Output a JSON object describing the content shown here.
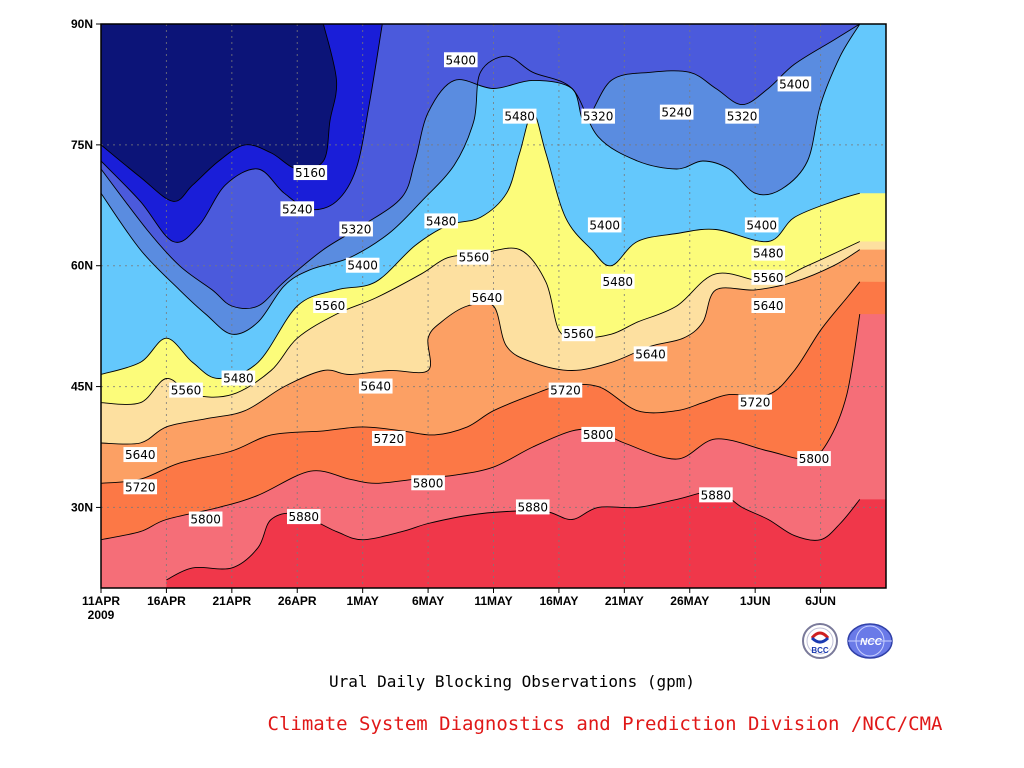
{
  "chart_data": {
    "type": "heatmap",
    "subtype": "filled-contour",
    "title": "Ural Daily Blocking Observations (gpm)",
    "x_tick_labels": [
      "11APR",
      "16APR",
      "21APR",
      "26APR",
      "1MAY",
      "6MAY",
      "11MAY",
      "16MAY",
      "21MAY",
      "26MAY",
      "1JUN",
      "6JUN"
    ],
    "x_year_label": "2009",
    "x_days": [
      0,
      5,
      10,
      15,
      20,
      25,
      30,
      35,
      40,
      45,
      50,
      55
    ],
    "xlim_days": [
      0,
      60
    ],
    "y_tick_labels": [
      "90N",
      "75N",
      "60N",
      "45N",
      "30N"
    ],
    "y_values": [
      90,
      75,
      60,
      45,
      30
    ],
    "ylim": [
      20,
      90
    ],
    "grid": true,
    "contour_levels": [
      5160,
      5240,
      5320,
      5400,
      5480,
      5560,
      5640,
      5720,
      5800,
      5880
    ],
    "fill_colors": [
      "#0c1478",
      "#1a1ed8",
      "#4b5adc",
      "#5a8ce0",
      "#64c8fc",
      "#fcfc7a",
      "#fde0a0",
      "#fca064",
      "#fc7846",
      "#f56e78",
      "#f0374a"
    ],
    "contour_lines": [
      {
        "level": 5160,
        "points": [
          [
            0,
            75
          ],
          [
            3,
            71
          ],
          [
            5.5,
            68
          ],
          [
            7,
            70
          ],
          [
            9,
            73
          ],
          [
            11,
            75
          ],
          [
            13,
            74
          ],
          [
            15,
            72
          ],
          [
            17,
            73
          ],
          [
            17.5,
            78
          ],
          [
            18,
            83
          ],
          [
            17,
            90
          ]
        ]
      },
      {
        "level": 5240,
        "points": [
          [
            0,
            73
          ],
          [
            3,
            68
          ],
          [
            5.5,
            63
          ],
          [
            7.5,
            65
          ],
          [
            9.5,
            70
          ],
          [
            12,
            72
          ],
          [
            14,
            69
          ],
          [
            16,
            67
          ],
          [
            18,
            68
          ],
          [
            19.5,
            72
          ],
          [
            20.5,
            80
          ],
          [
            21.5,
            90
          ]
        ]
      },
      {
        "level": 5320,
        "points": [
          [
            0,
            72
          ],
          [
            3.5,
            64.5
          ],
          [
            6,
            60
          ],
          [
            8.5,
            57
          ],
          [
            10,
            55
          ],
          [
            12,
            55
          ],
          [
            14,
            58
          ],
          [
            17,
            62
          ],
          [
            20,
            65
          ],
          [
            23,
            68.5
          ],
          [
            24,
            73
          ],
          [
            25,
            79
          ],
          [
            27,
            83
          ],
          [
            30,
            82
          ],
          [
            33,
            83
          ],
          [
            36,
            82
          ],
          [
            37,
            78
          ],
          [
            39,
            83
          ],
          [
            42,
            84
          ],
          [
            45,
            84
          ],
          [
            47,
            82
          ],
          [
            49,
            80
          ],
          [
            51,
            82
          ],
          [
            53,
            85
          ],
          [
            56,
            88
          ],
          [
            58,
            90
          ]
        ]
      },
      {
        "level": 5400,
        "points": [
          [
            0,
            69
          ],
          [
            3,
            62
          ],
          [
            6,
            57
          ],
          [
            8,
            54
          ],
          [
            10,
            51.5
          ],
          [
            12,
            53
          ],
          [
            14,
            57.5
          ],
          [
            16,
            59.5
          ],
          [
            19,
            61
          ],
          [
            22,
            64
          ],
          [
            24.5,
            68
          ],
          [
            27,
            72.5
          ],
          [
            28.5,
            78
          ],
          [
            29,
            84
          ],
          [
            31,
            86
          ],
          [
            33,
            84
          ],
          [
            36,
            82
          ],
          [
            38,
            76
          ],
          [
            41,
            73
          ],
          [
            44,
            72
          ],
          [
            46,
            73
          ],
          [
            48,
            72
          ],
          [
            50,
            69
          ],
          [
            52,
            69.5
          ],
          [
            54,
            73
          ],
          [
            55,
            80
          ],
          [
            56.5,
            86
          ],
          [
            58,
            90
          ]
        ]
      },
      {
        "level": 5480,
        "points": [
          [
            0,
            46.5
          ],
          [
            3,
            48
          ],
          [
            5,
            51
          ],
          [
            7,
            48
          ],
          [
            9,
            46
          ],
          [
            12,
            48
          ],
          [
            15,
            55
          ],
          [
            18,
            57
          ],
          [
            21,
            58
          ],
          [
            24,
            62.5
          ],
          [
            26.5,
            65
          ],
          [
            29,
            66
          ],
          [
            31,
            69
          ],
          [
            32,
            74
          ],
          [
            33,
            79
          ],
          [
            34,
            74
          ],
          [
            35.5,
            66
          ],
          [
            37.5,
            62
          ],
          [
            39,
            60
          ],
          [
            41,
            63
          ],
          [
            44,
            64
          ],
          [
            47,
            64.5
          ],
          [
            51,
            63
          ],
          [
            53,
            66
          ],
          [
            56,
            68
          ],
          [
            58,
            69
          ]
        ]
      },
      {
        "level": 5560,
        "points": [
          [
            0,
            43
          ],
          [
            3,
            43
          ],
          [
            5,
            46
          ],
          [
            7,
            44
          ],
          [
            10,
            44
          ],
          [
            13,
            47
          ],
          [
            15,
            51
          ],
          [
            18,
            54
          ],
          [
            21,
            56
          ],
          [
            24.5,
            59
          ],
          [
            26.5,
            61
          ],
          [
            29,
            61.5
          ],
          [
            32,
            62
          ],
          [
            34,
            58
          ],
          [
            35,
            52
          ],
          [
            36.5,
            51
          ],
          [
            39,
            51.5
          ],
          [
            41,
            53
          ],
          [
            44,
            55
          ],
          [
            47,
            59
          ],
          [
            51,
            58
          ],
          [
            54,
            60
          ],
          [
            58,
            63
          ]
        ]
      },
      {
        "level": 5640,
        "points": [
          [
            0,
            38
          ],
          [
            3,
            38
          ],
          [
            5,
            40
          ],
          [
            8,
            41
          ],
          [
            11,
            42
          ],
          [
            14,
            45
          ],
          [
            17,
            47
          ],
          [
            19,
            46.5
          ],
          [
            22,
            47
          ],
          [
            25,
            47
          ],
          [
            25,
            51
          ],
          [
            26,
            53
          ],
          [
            28,
            55
          ],
          [
            30,
            55
          ],
          [
            31,
            50
          ],
          [
            33,
            48
          ],
          [
            36,
            47
          ],
          [
            39,
            48
          ],
          [
            42,
            50
          ],
          [
            44.5,
            51
          ],
          [
            46,
            53
          ],
          [
            47,
            57
          ],
          [
            50,
            57
          ],
          [
            53,
            58
          ],
          [
            56,
            60
          ],
          [
            58,
            62
          ]
        ]
      },
      {
        "level": 5720,
        "points": [
          [
            0,
            33
          ],
          [
            3,
            33.5
          ],
          [
            6,
            35.5
          ],
          [
            10,
            37
          ],
          [
            13,
            39
          ],
          [
            17,
            39.5
          ],
          [
            20,
            40
          ],
          [
            23,
            39.5
          ],
          [
            25.5,
            39
          ],
          [
            28,
            40
          ],
          [
            30,
            42
          ],
          [
            33,
            44
          ],
          [
            35,
            45
          ],
          [
            38,
            45
          ],
          [
            41,
            42
          ],
          [
            44,
            42
          ],
          [
            46,
            43
          ],
          [
            48,
            44
          ],
          [
            51,
            44
          ],
          [
            53,
            47
          ],
          [
            55,
            52
          ],
          [
            57,
            56
          ],
          [
            58,
            58
          ]
        ]
      },
      {
        "level": 5800,
        "points": [
          [
            0,
            26
          ],
          [
            3,
            27
          ],
          [
            5,
            28.5
          ],
          [
            9,
            30
          ],
          [
            12,
            31.5
          ],
          [
            16,
            34.5
          ],
          [
            19,
            33.5
          ],
          [
            21,
            33
          ],
          [
            24,
            33.5
          ],
          [
            27,
            34
          ],
          [
            30,
            35
          ],
          [
            33,
            37.5
          ],
          [
            36,
            39.5
          ],
          [
            38,
            39.5
          ],
          [
            40,
            38
          ],
          [
            44,
            36
          ],
          [
            47,
            38.5
          ],
          [
            51,
            37
          ],
          [
            54,
            36
          ],
          [
            55.5,
            38
          ],
          [
            57,
            44
          ],
          [
            58,
            54
          ]
        ]
      },
      {
        "level": 5880,
        "points": [
          [
            5,
            21
          ],
          [
            7,
            22.5
          ],
          [
            10,
            22.5
          ],
          [
            12,
            25
          ],
          [
            13,
            28.5
          ],
          [
            15,
            29.2
          ],
          [
            18,
            27
          ],
          [
            20,
            26
          ],
          [
            23,
            27
          ],
          [
            25,
            28
          ],
          [
            28,
            29
          ],
          [
            31,
            29.5
          ],
          [
            34,
            29.5
          ],
          [
            36,
            28.5
          ],
          [
            38,
            30
          ],
          [
            41,
            30
          ],
          [
            44,
            31
          ],
          [
            47,
            32
          ],
          [
            49,
            30
          ],
          [
            51,
            28.5
          ],
          [
            53,
            26.5
          ],
          [
            55,
            26
          ],
          [
            56.5,
            28
          ],
          [
            58,
            31
          ]
        ]
      }
    ],
    "contour_labels": [
      {
        "text": "5400",
        "day": 27.5,
        "lat": 85.5
      },
      {
        "text": "5480",
        "day": 32,
        "lat": 78.5
      },
      {
        "text": "5320",
        "day": 38,
        "lat": 78.5
      },
      {
        "text": "5240",
        "day": 44,
        "lat": 79
      },
      {
        "text": "5320",
        "day": 49,
        "lat": 78.5
      },
      {
        "text": "5400",
        "day": 53,
        "lat": 82.5
      },
      {
        "text": "5160",
        "day": 16,
        "lat": 71.5
      },
      {
        "text": "5240",
        "day": 15,
        "lat": 67
      },
      {
        "text": "5320",
        "day": 19.5,
        "lat": 64.5
      },
      {
        "text": "5400",
        "day": 20,
        "lat": 60
      },
      {
        "text": "5480",
        "day": 26,
        "lat": 65.5
      },
      {
        "text": "5560",
        "day": 28.5,
        "lat": 61
      },
      {
        "text": "5400",
        "day": 38.5,
        "lat": 65
      },
      {
        "text": "5400",
        "day": 50.5,
        "lat": 65
      },
      {
        "text": "5480",
        "day": 51,
        "lat": 61.5
      },
      {
        "text": "5560",
        "day": 51,
        "lat": 58.5
      },
      {
        "text": "5640",
        "day": 51,
        "lat": 55
      },
      {
        "text": "5560",
        "day": 17.5,
        "lat": 55
      },
      {
        "text": "5640",
        "day": 29.5,
        "lat": 56
      },
      {
        "text": "5480",
        "day": 39.5,
        "lat": 58
      },
      {
        "text": "5560",
        "day": 36.5,
        "lat": 51.5
      },
      {
        "text": "5640",
        "day": 42,
        "lat": 49
      },
      {
        "text": "5480",
        "day": 10.5,
        "lat": 46
      },
      {
        "text": "5560",
        "day": 6.5,
        "lat": 44.5
      },
      {
        "text": "5640",
        "day": 21,
        "lat": 45
      },
      {
        "text": "5720",
        "day": 35.5,
        "lat": 44.5
      },
      {
        "text": "5720",
        "day": 50,
        "lat": 43
      },
      {
        "text": "5640",
        "day": 3,
        "lat": 36.5
      },
      {
        "text": "5720",
        "day": 22,
        "lat": 38.5
      },
      {
        "text": "5800",
        "day": 38,
        "lat": 39
      },
      {
        "text": "5800",
        "day": 54.5,
        "lat": 36
      },
      {
        "text": "5720",
        "day": 3,
        "lat": 32.5
      },
      {
        "text": "5800",
        "day": 25,
        "lat": 33
      },
      {
        "text": "5880",
        "day": 47,
        "lat": 31.5
      },
      {
        "text": "5800",
        "day": 8,
        "lat": 28.5
      },
      {
        "text": "5880",
        "day": 15.5,
        "lat": 28.8
      },
      {
        "text": "5880",
        "day": 33,
        "lat": 30
      }
    ]
  },
  "logos": {
    "bcc": {
      "name": "bcc-logo",
      "text": "BCC"
    },
    "ncc": {
      "name": "ncc-logo",
      "text": "NCC"
    }
  },
  "footer": {
    "caption": "Ural Daily Blocking Observations (gpm)",
    "credit": "Climate System Diagnostics and Prediction Division /NCC/CMA",
    "credit_color": "#e01818"
  }
}
